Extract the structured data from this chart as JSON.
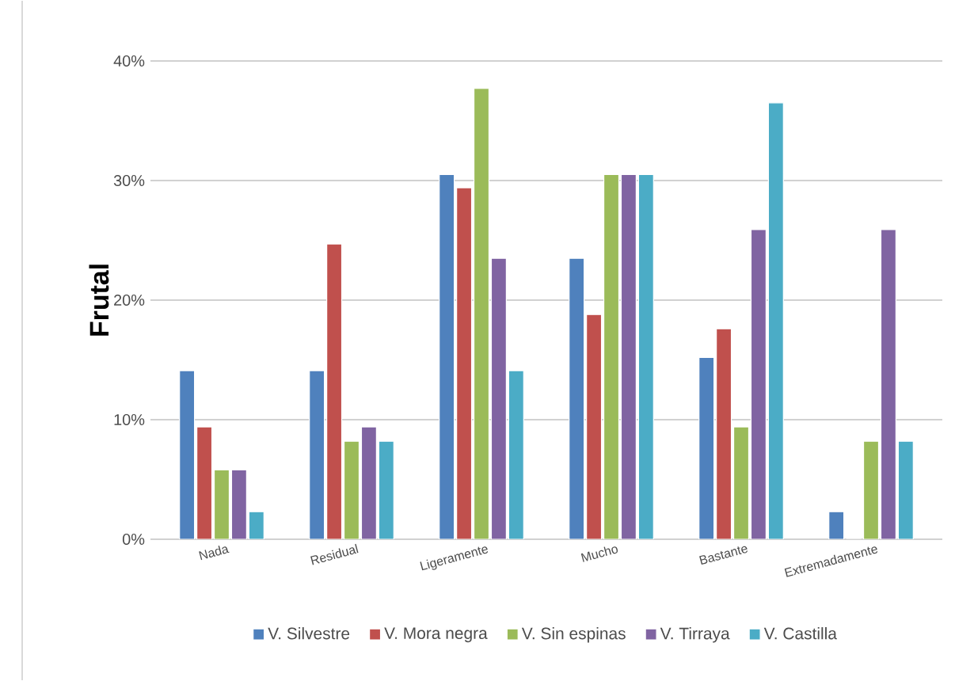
{
  "chart_data": {
    "type": "bar",
    "ylabel": "Frutal",
    "categories": [
      "Nada",
      "Residual",
      "Ligeramente",
      "Mucho",
      "Bastante",
      "Extremadamente"
    ],
    "series": [
      {
        "name": "V. Silvestre",
        "color": "#4f81bd",
        "values": [
          14.1,
          14.1,
          30.5,
          23.5,
          15.2,
          2.3
        ]
      },
      {
        "name": "V. Mora negra",
        "color": "#c0504d",
        "values": [
          9.4,
          24.7,
          29.4,
          18.8,
          17.6,
          0
        ]
      },
      {
        "name": "V. Sin espinas",
        "color": "#9bbb59",
        "values": [
          5.8,
          8.2,
          37.7,
          30.5,
          9.4,
          8.2
        ]
      },
      {
        "name": "V. Tirraya",
        "color": "#8064a2",
        "values": [
          5.8,
          9.4,
          23.5,
          30.5,
          25.9,
          25.9
        ]
      },
      {
        "name": "V. Castilla",
        "color": "#4bacc6",
        "values": [
          2.3,
          8.2,
          14.1,
          30.5,
          36.5,
          8.2
        ]
      }
    ],
    "ylim": [
      0,
      40
    ],
    "yticks": [
      {
        "value": 0,
        "label": "0%"
      },
      {
        "value": 10,
        "label": "10%"
      },
      {
        "value": 20,
        "label": "20%"
      },
      {
        "value": 30,
        "label": "30%"
      },
      {
        "value": 40,
        "label": "40%"
      }
    ],
    "grid": "y",
    "legend": "bottom"
  }
}
